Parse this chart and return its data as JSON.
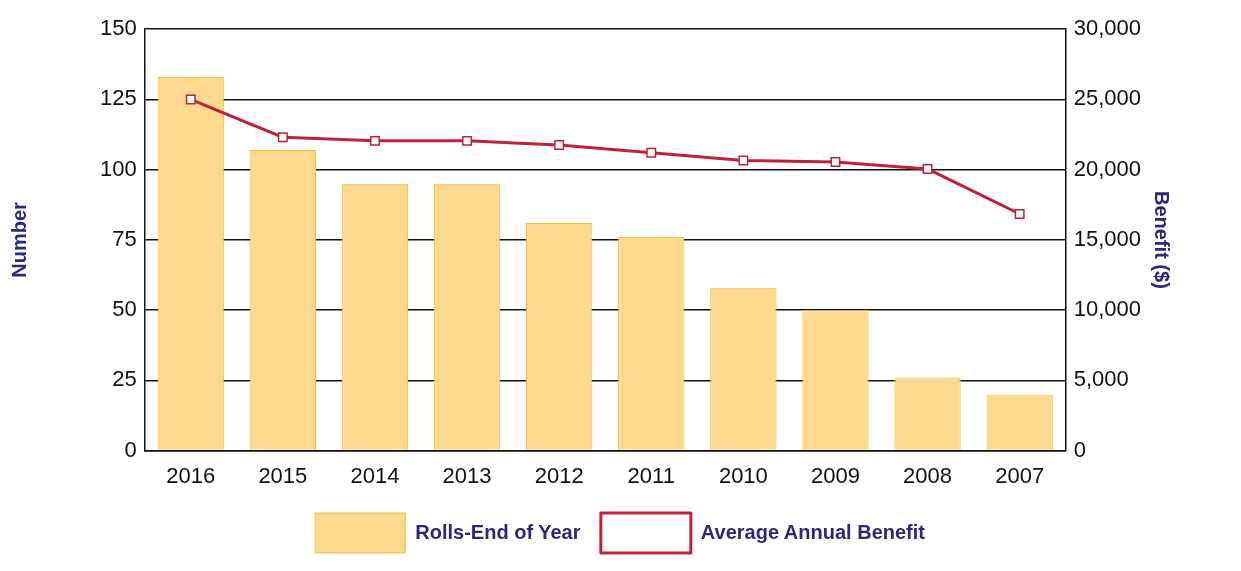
{
  "chart_data": {
    "type": "bar",
    "categories": [
      "2016",
      "2015",
      "2014",
      "2013",
      "2012",
      "2011",
      "2010",
      "2009",
      "2008",
      "2007"
    ],
    "series": [
      {
        "name": "Rolls-End of Year",
        "color": "#fdd98f",
        "values": [
          133,
          107,
          95,
          95,
          81,
          76,
          58,
          50,
          26,
          20
        ]
      },
      {
        "name": "Average Annual Benefit",
        "type": "line",
        "axis": "y2",
        "color": "#c0203a",
        "marker": "square",
        "values": [
          25000,
          22300,
          22050,
          22050,
          21750,
          21200,
          20650,
          20550,
          20050,
          16850
        ]
      }
    ],
    "ylabel": "Number",
    "y2label": "Benefit ($)",
    "ylim": [
      0,
      150
    ],
    "yticks": [
      0,
      25,
      50,
      75,
      100,
      125,
      150
    ],
    "y2lim": [
      0,
      30000
    ],
    "y2ticks": [
      0,
      {
        "value": 5000,
        "label": "5,000"
      },
      {
        "value": 10000,
        "label": "10,000"
      },
      {
        "value": 15000,
        "label": "15,000"
      },
      {
        "value": 20000,
        "label": "20,000"
      },
      {
        "value": 25000,
        "label": "25,000"
      },
      {
        "value": 30000,
        "label": "30,000"
      }
    ],
    "grid": "y",
    "legend": "bottom"
  }
}
